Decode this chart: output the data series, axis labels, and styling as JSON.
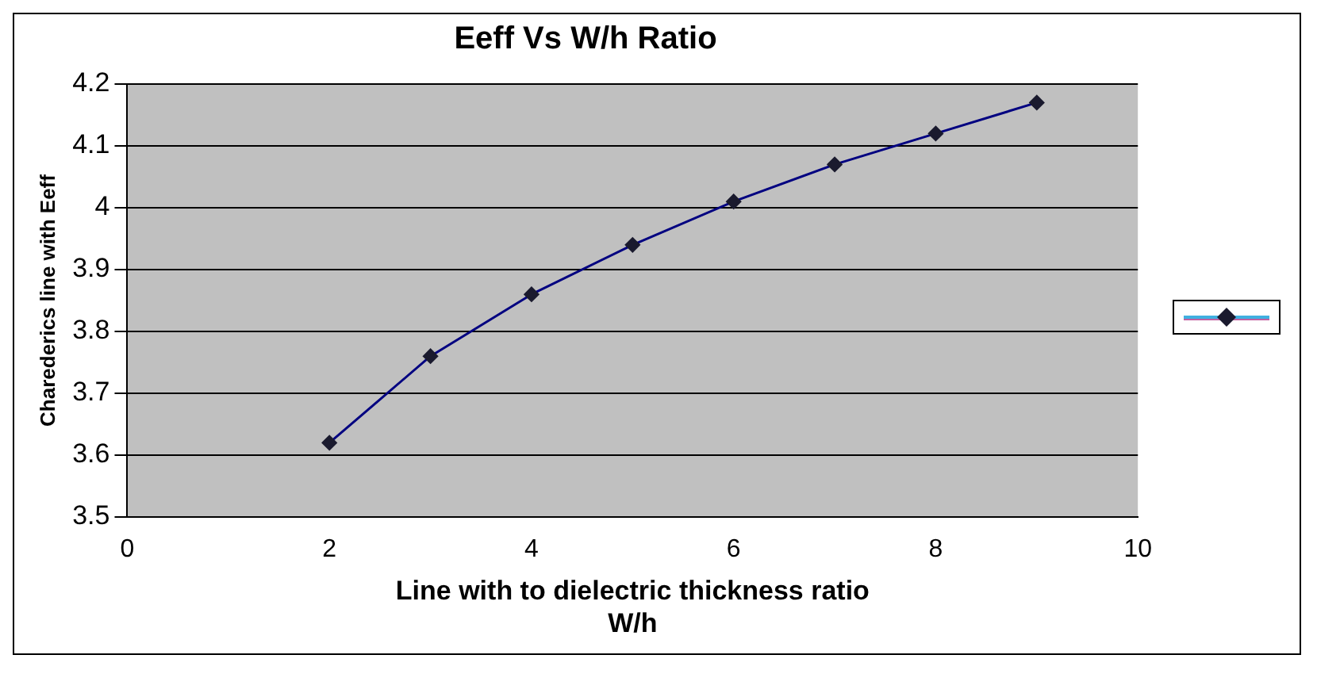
{
  "chart_data": {
    "type": "line",
    "title": "Eeff Vs W/h Ratio",
    "xlabel": "Line with to dielectric thickness ratio\nW/h",
    "ylabel": "Charederics line with Eeff",
    "x": [
      2,
      3,
      4,
      5,
      6,
      7,
      8,
      9
    ],
    "series": [
      {
        "color": "#000080",
        "values": [
          3.62,
          3.76,
          3.86,
          3.94,
          4.01,
          4.07,
          4.12,
          4.17
        ]
      }
    ],
    "xlim": [
      0,
      10
    ],
    "xticks": [
      0,
      2,
      4,
      6,
      8,
      10
    ],
    "ylim": [
      3.5,
      4.2
    ],
    "yticks": [
      3.5,
      3.6,
      3.7,
      3.8,
      3.9,
      4,
      4.1,
      4.2
    ],
    "grid": "y",
    "marker": "diamond",
    "line_style": "solid"
  }
}
